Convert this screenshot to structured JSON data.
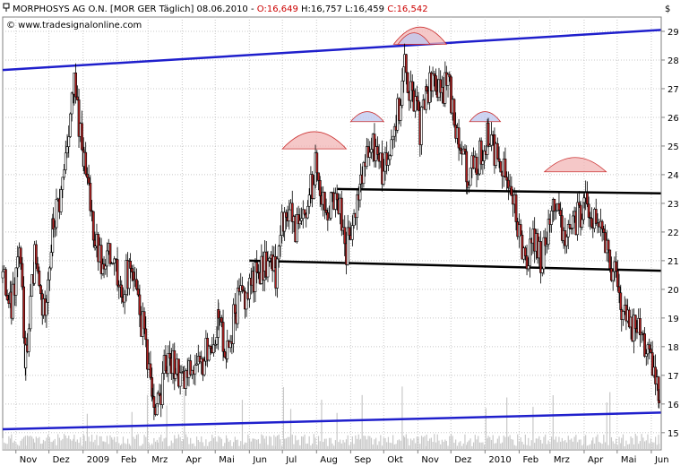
{
  "header": {
    "icon": "pin-icon",
    "prefix": "MORPHOSYS AG O.N. [MOR GER Täglich] 08.06.2010 -",
    "open": "O:16,649",
    "high_low": "H:16,757 L:16,459",
    "close": "C:16,542",
    "currency": "$"
  },
  "watermark": "© www.tradesignalonline.com",
  "colors": {
    "up": "#ffffff",
    "down": "#b22222",
    "trend_channel": "#1f1fcc",
    "support": "#000000",
    "arc_red": "#f2b5b5",
    "arc_blue": "#bcc5ee",
    "volume": "#c8c8c8",
    "header_red": "#cc0000"
  },
  "chart_data": {
    "type": "candlestick",
    "title": "MORPHOSYS AG O.N. [MOR GER Täglich] 08.06.2010",
    "y_ticks": [
      15,
      16,
      17,
      18,
      19,
      20,
      21,
      22,
      23,
      24,
      25,
      26,
      27,
      28,
      29
    ],
    "y_tick_labels": [
      "15",
      "16",
      "17",
      "18",
      "19",
      "20",
      "21",
      "22",
      "23",
      "24",
      "25",
      "26",
      "27",
      "28",
      "29"
    ],
    "ylim": [
      14.4,
      29.5
    ],
    "x_labels": [
      "Nov",
      "Dez",
      "2009",
      "Feb",
      "Mrz",
      "Apr",
      "Mai",
      "Jun",
      "Jul",
      "Aug",
      "Sep",
      "Okt",
      "Nov",
      "Dez",
      "2010",
      "Feb",
      "Mrz",
      "Apr",
      "Mai",
      "Jun"
    ],
    "xlim": [
      "2008-10-20",
      "2010-06-10"
    ],
    "x_label_dates": [
      "2008-11-01",
      "2008-12-01",
      "2009-01-01",
      "2009-02-01",
      "2009-03-01",
      "2009-04-01",
      "2009-05-01",
      "2009-06-01",
      "2009-07-01",
      "2009-08-01",
      "2009-09-01",
      "2009-10-01",
      "2009-11-01",
      "2009-12-01",
      "2010-01-01",
      "2010-02-01",
      "2010-03-01",
      "2010-04-01",
      "2010-05-01",
      "2010-06-01"
    ],
    "grid": true,
    "price_path": [
      [
        "2008-10-20",
        20.4
      ],
      [
        "2008-10-28",
        19.2
      ],
      [
        "2008-11-04",
        21.3
      ],
      [
        "2008-11-10",
        17.6
      ],
      [
        "2008-11-18",
        21.0
      ],
      [
        "2008-11-26",
        19.1
      ],
      [
        "2008-12-05",
        22.2
      ],
      [
        "2008-12-12",
        23.2
      ],
      [
        "2008-12-19",
        25.8
      ],
      [
        "2008-12-24",
        27.0
      ],
      [
        "2009-01-02",
        24.3
      ],
      [
        "2009-01-12",
        21.8
      ],
      [
        "2009-01-20",
        20.5
      ],
      [
        "2009-01-28",
        21.5
      ],
      [
        "2009-02-05",
        20.0
      ],
      [
        "2009-02-13",
        20.8
      ],
      [
        "2009-02-20",
        19.3
      ],
      [
        "2009-02-27",
        18.2
      ],
      [
        "2009-03-05",
        16.4
      ],
      [
        "2009-03-10",
        16.0
      ],
      [
        "2009-03-18",
        17.6
      ],
      [
        "2009-03-26",
        17.4
      ],
      [
        "2009-04-03",
        16.8
      ],
      [
        "2009-04-10",
        17.4
      ],
      [
        "2009-04-17",
        17.0
      ],
      [
        "2009-04-24",
        18.0
      ],
      [
        "2009-05-04",
        18.9
      ],
      [
        "2009-05-12",
        17.8
      ],
      [
        "2009-05-20",
        19.4
      ],
      [
        "2009-05-28",
        19.8
      ],
      [
        "2009-06-05",
        20.4
      ],
      [
        "2009-06-15",
        21.0
      ],
      [
        "2009-06-25",
        20.6
      ],
      [
        "2009-07-03",
        22.8
      ],
      [
        "2009-07-10",
        22.4
      ],
      [
        "2009-07-17",
        22.0
      ],
      [
        "2009-07-24",
        22.8
      ],
      [
        "2009-07-31",
        24.4
      ],
      [
        "2009-08-07",
        23.3
      ],
      [
        "2009-08-14",
        22.8
      ],
      [
        "2009-08-21",
        23.1
      ],
      [
        "2009-08-28",
        21.4
      ],
      [
        "2009-09-04",
        22.2
      ],
      [
        "2009-09-10",
        23.8
      ],
      [
        "2009-09-17",
        24.6
      ],
      [
        "2009-09-24",
        25.0
      ],
      [
        "2009-10-01",
        23.9
      ],
      [
        "2009-10-08",
        25.6
      ],
      [
        "2009-10-15",
        26.4
      ],
      [
        "2009-10-20",
        27.9
      ],
      [
        "2009-10-27",
        26.6
      ],
      [
        "2009-11-03",
        25.6
      ],
      [
        "2009-11-09",
        26.8
      ],
      [
        "2009-11-16",
        27.4
      ],
      [
        "2009-11-23",
        26.5
      ],
      [
        "2009-11-27",
        27.5
      ],
      [
        "2009-12-04",
        26.0
      ],
      [
        "2009-12-11",
        25.0
      ],
      [
        "2009-12-16",
        23.9
      ],
      [
        "2009-12-23",
        24.2
      ],
      [
        "2010-01-04",
        25.3
      ],
      [
        "2010-01-11",
        24.8
      ],
      [
        "2010-01-18",
        24.2
      ],
      [
        "2010-01-25",
        23.3
      ],
      [
        "2010-02-01",
        21.8
      ],
      [
        "2010-02-08",
        21.2
      ],
      [
        "2010-02-15",
        21.7
      ],
      [
        "2010-02-22",
        21.0
      ],
      [
        "2010-03-01",
        22.4
      ],
      [
        "2010-03-05",
        23.3
      ],
      [
        "2010-03-12",
        22.1
      ],
      [
        "2010-03-19",
        21.8
      ],
      [
        "2010-03-26",
        22.5
      ],
      [
        "2010-04-01",
        22.9
      ],
      [
        "2010-04-09",
        22.4
      ],
      [
        "2010-04-16",
        22.0
      ],
      [
        "2010-04-23",
        21.2
      ],
      [
        "2010-04-30",
        20.2
      ],
      [
        "2010-05-05",
        19.3
      ],
      [
        "2010-05-12",
        18.6
      ],
      [
        "2010-05-19",
        18.9
      ],
      [
        "2010-05-26",
        18.2
      ],
      [
        "2010-06-02",
        17.2
      ],
      [
        "2010-06-08",
        16.54
      ]
    ],
    "lines": [
      {
        "name": "upper-trend-channel",
        "color": "#1f1fcc",
        "from": [
          "2008-10-20",
          27.65
        ],
        "to": [
          "2010-06-10",
          29.05
        ]
      },
      {
        "name": "lower-trend-channel",
        "color": "#1f1fcc",
        "from": [
          "2008-10-20",
          15.12
        ],
        "to": [
          "2010-06-10",
          15.7
        ]
      },
      {
        "name": "neckline-upper",
        "color": "#000000",
        "from": [
          "2009-08-20",
          23.5
        ],
        "to": [
          "2010-06-10",
          23.35
        ]
      },
      {
        "name": "neckline-lower",
        "color": "#000000",
        "from": [
          "2009-06-01",
          21.0
        ],
        "to": [
          "2010-06-10",
          20.65
        ]
      }
    ],
    "arcs": [
      {
        "name": "left-shoulder-arc",
        "color": "#f2b5b5",
        "from": "2009-07-01",
        "to": "2009-08-28",
        "base": 24.9,
        "peak": 25.5
      },
      {
        "name": "right-shoulder-arc",
        "color": "#f2b5b5",
        "from": "2010-02-24",
        "to": "2010-04-21",
        "base": 24.1,
        "peak": 24.6
      },
      {
        "name": "head-arc",
        "color": "#f2b5b5",
        "from": "2009-10-10",
        "to": "2009-11-27",
        "base": 28.55,
        "peak": 29.15
      },
      {
        "name": "head-inner-arc",
        "color": "#bcc5ee",
        "from": "2009-10-14",
        "to": "2009-11-12",
        "base": 28.55,
        "peak": 28.95
      },
      {
        "name": "left-sub-arc",
        "color": "#bcc5ee",
        "from": "2009-09-01",
        "to": "2009-10-01",
        "base": 25.85,
        "peak": 26.2
      },
      {
        "name": "right-sub-arc",
        "color": "#bcc5ee",
        "from": "2009-12-18",
        "to": "2010-01-15",
        "base": 25.85,
        "peak": 26.2
      }
    ]
  }
}
